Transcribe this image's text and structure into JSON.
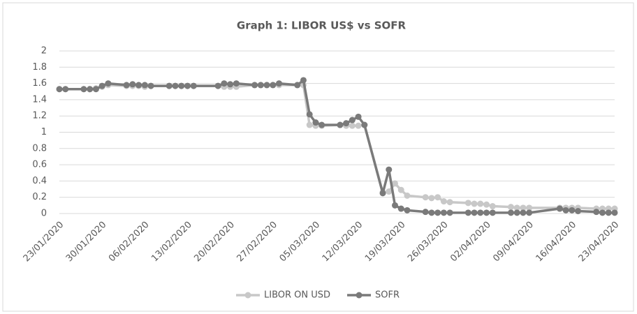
{
  "chart_data": {
    "type": "line",
    "title": "Graph 1: LIBOR US$ vs SOFR",
    "x": [
      "23/01/2020",
      "24/01/2020",
      "27/01/2020",
      "28/01/2020",
      "29/01/2020",
      "30/01/2020",
      "31/01/2020",
      "03/02/2020",
      "04/02/2020",
      "05/02/2020",
      "06/02/2020",
      "07/02/2020",
      "10/02/2020",
      "11/02/2020",
      "12/02/2020",
      "13/02/2020",
      "14/02/2020",
      "18/02/2020",
      "19/02/2020",
      "20/02/2020",
      "21/02/2020",
      "24/02/2020",
      "25/02/2020",
      "26/02/2020",
      "27/02/2020",
      "28/02/2020",
      "02/03/2020",
      "03/03/2020",
      "04/03/2020",
      "05/03/2020",
      "06/03/2020",
      "09/03/2020",
      "10/03/2020",
      "11/03/2020",
      "12/03/2020",
      "13/03/2020",
      "16/03/2020",
      "17/03/2020",
      "18/03/2020",
      "19/03/2020",
      "20/03/2020",
      "23/03/2020",
      "24/03/2020",
      "25/03/2020",
      "26/03/2020",
      "27/03/2020",
      "30/03/2020",
      "31/03/2020",
      "01/04/2020",
      "02/04/2020",
      "03/04/2020",
      "06/04/2020",
      "07/04/2020",
      "08/04/2020",
      "09/04/2020",
      "14/04/2020",
      "15/04/2020",
      "16/04/2020",
      "17/04/2020",
      "20/04/2020",
      "21/04/2020",
      "22/04/2020",
      "23/04/2020"
    ],
    "series": [
      {
        "name": "LIBOR ON USD",
        "color": "#c8c8c8",
        "values": [
          1.53,
          1.53,
          1.53,
          1.53,
          1.54,
          1.56,
          1.58,
          1.57,
          1.57,
          1.57,
          1.56,
          1.57,
          1.57,
          1.57,
          1.57,
          1.57,
          1.57,
          1.57,
          1.56,
          1.56,
          1.56,
          1.58,
          1.58,
          1.58,
          1.58,
          1.58,
          1.58,
          1.58,
          1.09,
          1.08,
          1.08,
          1.09,
          1.08,
          1.08,
          1.08,
          1.09,
          0.26,
          0.27,
          0.37,
          0.29,
          0.22,
          0.2,
          0.19,
          0.2,
          0.15,
          0.14,
          0.13,
          0.12,
          0.12,
          0.11,
          0.09,
          0.08,
          0.07,
          0.07,
          0.07,
          0.07,
          0.07,
          0.07,
          0.07,
          0.06,
          0.06,
          0.06,
          0.06
        ]
      },
      {
        "name": "SOFR",
        "color": "#7a7a7a",
        "values": [
          1.53,
          1.53,
          1.53,
          1.53,
          1.53,
          1.57,
          1.6,
          1.58,
          1.59,
          1.58,
          1.58,
          1.57,
          1.57,
          1.57,
          1.57,
          1.57,
          1.57,
          1.57,
          1.6,
          1.59,
          1.6,
          1.58,
          1.58,
          1.58,
          1.58,
          1.6,
          1.58,
          1.64,
          1.22,
          1.12,
          1.09,
          1.09,
          1.11,
          1.15,
          1.19,
          1.09,
          0.25,
          0.54,
          0.1,
          0.06,
          0.04,
          0.02,
          0.01,
          0.01,
          0.01,
          0.01,
          0.01,
          0.01,
          0.01,
          0.01,
          0.01,
          0.01,
          0.01,
          0.01,
          0.01,
          0.06,
          0.04,
          0.04,
          0.03,
          0.02,
          0.01,
          0.01,
          0.01
        ]
      }
    ],
    "xlim": [
      "23/01/2020",
      "23/04/2020"
    ],
    "xticks": [
      "23/01/2020",
      "30/01/2020",
      "06/02/2020",
      "13/02/2020",
      "20/02/2020",
      "27/02/2020",
      "05/03/2020",
      "12/03/2020",
      "19/03/2020",
      "26/03/2020",
      "02/04/2020",
      "09/04/2020",
      "16/04/2020",
      "23/04/2020"
    ],
    "ylim": [
      0,
      2
    ],
    "yticks": [
      0,
      0.2,
      0.4,
      0.6,
      0.8,
      1,
      1.2,
      1.4,
      1.6,
      1.8,
      2
    ],
    "grid": true,
    "legend": "bottom"
  }
}
